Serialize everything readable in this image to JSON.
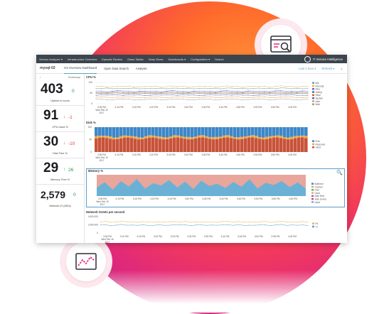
{
  "nav": {
    "items": [
      "Service Analyzer ▾",
      "Infrastructure Overview",
      "Episode Review",
      "Glass Tables",
      "Deep Dives",
      "Dashboards ▾",
      "Configuration ▾",
      "Search"
    ],
    "brand": "IT Service Intelligence"
  },
  "subheader": {
    "host": "mysql-02",
    "tabs": [
      "Vm Overview Dashboard",
      "Open Data Search",
      "Analysis"
    ],
    "active_tab": 0,
    "time_range": "Last 1 hour ▾",
    "refresh": "Refresh ▾"
  },
  "summary": {
    "header": "Summary",
    "kpis": [
      {
        "value": "403",
        "delta": "0",
        "direction": "none",
        "label": "Uptime in hours"
      },
      {
        "value": "91",
        "delta": "-1",
        "direction": "down",
        "label": "CPU Used %"
      },
      {
        "value": "30",
        "delta": "-10",
        "direction": "down",
        "label": "Disk Free %"
      },
      {
        "value": "29",
        "delta": "26",
        "direction": "up",
        "label": "Memory Free %"
      },
      {
        "value": "2,579",
        "delta": "0",
        "direction": "none",
        "label": "Network IO (KB/s)"
      }
    ]
  },
  "colors": {
    "up": "#1a9c3e",
    "down": "#d93f3c",
    "neutral": "#1a9c3e",
    "accent": "#5c9ec9"
  },
  "icons": {
    "top_badge": "browser-target-icon",
    "bottom_badge": "line-chart-icon"
  },
  "chart_data": [
    {
      "type": "line",
      "title": "CPU %",
      "ylim": [
        0,
        100
      ],
      "y_ticks": [
        "100",
        "50",
        "0"
      ],
      "x_ticks": [
        "3:05 PM\nWed Feb 15\n2017",
        "3:10 PM",
        "3:15 PM",
        "3:20 PM",
        "3:25 PM",
        "3:30 PM",
        "3:35 PM",
        "3:40 PM",
        "3:45 PM",
        "3:50 PM",
        "3:55 PM",
        "4:00 PM"
      ],
      "series": [
        {
          "name": "Idle",
          "color": "#5c9ec9",
          "values": [
            72,
            70,
            73,
            71,
            74,
            72,
            70,
            73,
            71,
            72
          ]
        },
        {
          "name": "Interrupt",
          "color": "#eab54d",
          "values": [
            80,
            82,
            79,
            81,
            83,
            80,
            82,
            79,
            81,
            80
          ]
        },
        {
          "name": "Nice",
          "color": "#7b56db",
          "values": [
            58,
            60,
            57,
            59,
            61,
            58,
            60,
            57,
            59,
            58
          ]
        },
        {
          "name": "Softirq",
          "color": "#2d8a6f",
          "values": [
            52,
            54,
            51,
            53,
            55,
            52,
            54,
            51,
            53,
            52
          ]
        },
        {
          "name": "Steal",
          "color": "#e6562f",
          "values": [
            48,
            49,
            47,
            48,
            50,
            48,
            49,
            47,
            48,
            48
          ]
        },
        {
          "name": "System",
          "color": "#4a6fb5",
          "values": [
            40,
            42,
            39,
            41,
            43,
            40,
            42,
            39,
            41,
            40
          ]
        },
        {
          "name": "User",
          "color": "#e89b4f",
          "values": [
            30,
            31,
            29,
            30,
            32,
            30,
            31,
            29,
            30,
            30
          ]
        },
        {
          "name": "Wait",
          "color": "#9c9c9c",
          "values": [
            20,
            21,
            19,
            20,
            22,
            20,
            21,
            19,
            20,
            20
          ]
        }
      ]
    },
    {
      "type": "bar",
      "title": "Disk %",
      "y_ticks": [
        "100",
        "50",
        "0"
      ],
      "x_ticks": [
        "3:05 PM\nWed Feb 15\n2017",
        "3:10 PM",
        "3:15 PM",
        "3:20 PM",
        "3:25 PM",
        "3:30 PM",
        "3:35 PM",
        "3:40 PM",
        "3:45 PM",
        "3:50 PM",
        "3:55 PM",
        "4:00 PM"
      ],
      "series": [
        {
          "name": "Free",
          "color": "#3d87c8"
        },
        {
          "name": "Reserved",
          "color": "#e6a84b"
        },
        {
          "name": "Used",
          "color": "#c8533a"
        }
      ],
      "stack": {
        "used": 55,
        "reserved": 8,
        "free": 37
      }
    },
    {
      "type": "area",
      "title": "Memory %",
      "x_ticks": [
        "3:05 PM\nWed Feb 15\n2017",
        "3:10 PM",
        "3:15 PM",
        "3:20 PM",
        "3:25 PM",
        "3:30 PM",
        "3:35 PM",
        "3:40 PM",
        "3:45 PM",
        "3:50 PM",
        "3:55 PM",
        "4:00 PM"
      ],
      "series": [
        {
          "name": "Buffered",
          "color": "#3d87c8"
        },
        {
          "name": "Cached",
          "color": "#e6a84b"
        },
        {
          "name": "Free",
          "color": "#5cb85c"
        },
        {
          "name": "Used",
          "color": "#e8a69c"
        },
        {
          "name": "Slab Recl",
          "color": "#8e6bb8"
        },
        {
          "name": "Slab Unrecl",
          "color": "#d9534f"
        },
        {
          "name": "Used",
          "color": "#6bb1d6"
        }
      ],
      "used_values": [
        40,
        65,
        30,
        70,
        45,
        80,
        35,
        60,
        50,
        75,
        40,
        68,
        33,
        72,
        48,
        58,
        38,
        66,
        44,
        78,
        36,
        62,
        52,
        70,
        42,
        64,
        35
      ]
    },
    {
      "type": "line",
      "title": "Network Octets per second",
      "y_ticks": [
        "4,000,000",
        "2,000,000",
        "0"
      ],
      "x_ticks": [
        "3:05 PM\nWed Feb 15\n2017",
        "3:10 PM",
        "3:15 PM",
        "3:20 PM",
        "3:25 PM",
        "3:30 PM",
        "3:35 PM",
        "3:40 PM",
        "3:45 PM",
        "3:50 PM",
        "3:55 PM",
        "4:00 PM"
      ],
      "series": [
        {
          "name": "Rx",
          "color": "#eab54d",
          "values": [
            2700000,
            2800000,
            2650000,
            2750000,
            2850000,
            2700000,
            2800000,
            2650000,
            2750000,
            2700000
          ]
        },
        {
          "name": "Tx",
          "color": "#5c9ec9",
          "values": [
            1900000,
            2000000,
            1850000,
            1950000,
            2050000,
            1900000,
            2000000,
            1850000,
            1950000,
            1900000
          ]
        }
      ]
    }
  ]
}
